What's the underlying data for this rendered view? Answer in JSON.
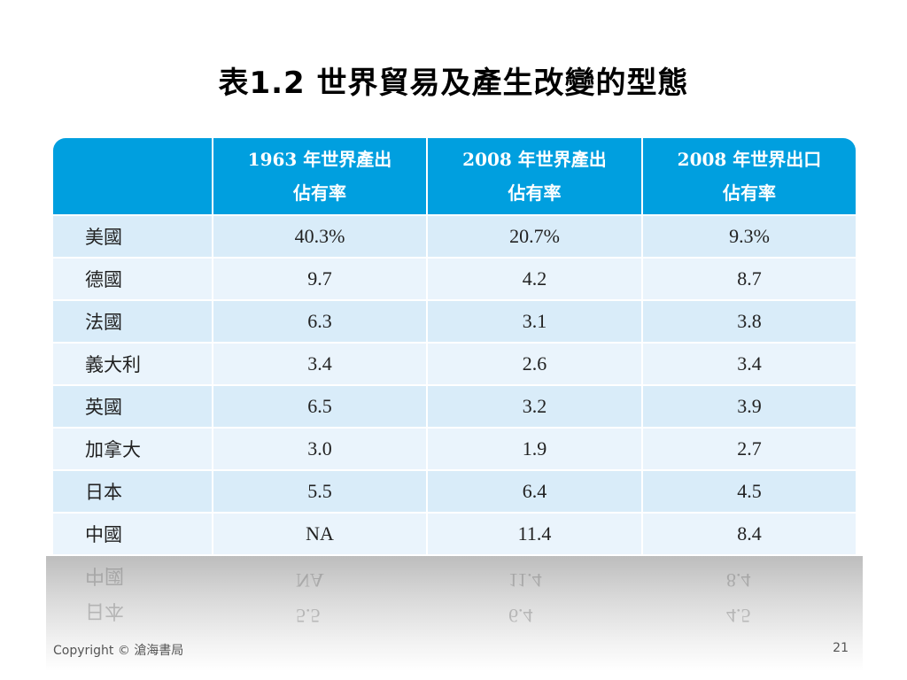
{
  "title": "表1.2 世界貿易及產生改變的型態",
  "table": {
    "header": {
      "col0": "",
      "col1": [
        "1963 年世界產出",
        "佔有率"
      ],
      "col2": [
        "2008 年世界產出",
        "佔有率"
      ],
      "col3": [
        "2008 年世界出口",
        "佔有率"
      ]
    },
    "rows": [
      {
        "country": "美國",
        "v1963": "40.3%",
        "v2008out": "20.7%",
        "v2008exp": "9.3%"
      },
      {
        "country": "德國",
        "v1963": "9.7",
        "v2008out": "4.2",
        "v2008exp": "8.7"
      },
      {
        "country": "法國",
        "v1963": "6.3",
        "v2008out": "3.1",
        "v2008exp": "3.8"
      },
      {
        "country": "義大利",
        "v1963": "3.4",
        "v2008out": "2.6",
        "v2008exp": "3.4"
      },
      {
        "country": "英國",
        "v1963": "6.5",
        "v2008out": "3.2",
        "v2008exp": "3.9"
      },
      {
        "country": "加拿大",
        "v1963": "3.0",
        "v2008out": "1.9",
        "v2008exp": "2.7"
      },
      {
        "country": "日本",
        "v1963": "5.5",
        "v2008out": "6.4",
        "v2008exp": "4.5"
      },
      {
        "country": "中國",
        "v1963": "NA",
        "v2008out": "11.4",
        "v2008exp": "8.4"
      }
    ]
  },
  "footer": {
    "copyright": "Copyright © 滄海書局",
    "page_number": "21"
  },
  "colors": {
    "header_bg": "#009fdf",
    "row_odd": "#d9ecf9",
    "row_even": "#eaf4fc"
  }
}
